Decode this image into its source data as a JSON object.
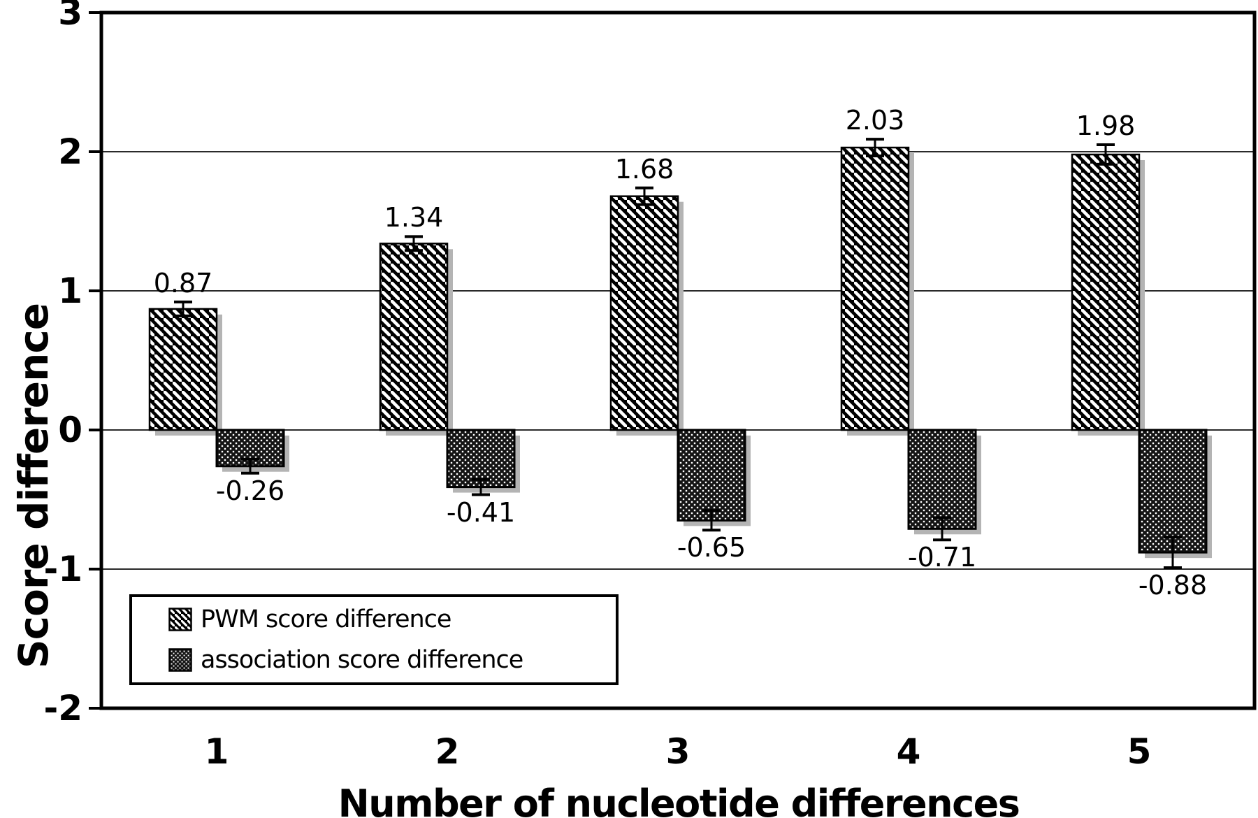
{
  "chart_data": {
    "type": "bar",
    "title": "",
    "xlabel": "Number of nucleotide differences",
    "ylabel": "Score difference",
    "categories": [
      "1",
      "2",
      "3",
      "4",
      "5"
    ],
    "ylim": [
      -2,
      3
    ],
    "yticks": [
      3,
      2,
      1,
      0,
      -1,
      -2
    ],
    "ytick_labels": [
      "3",
      "2",
      "1",
      "0",
      "-1",
      "-2"
    ],
    "grid": "horizontal",
    "legend_position": "inside-bottom-left",
    "series": [
      {
        "name": "PWM score difference",
        "pattern": "diagonal-hatch",
        "values": [
          0.87,
          1.34,
          1.68,
          2.03,
          1.98
        ],
        "labels": [
          "0.87",
          "1.34",
          "1.68",
          "2.03",
          "1.98"
        ],
        "errors_est": [
          0.05,
          0.05,
          0.06,
          0.06,
          0.07
        ]
      },
      {
        "name": "association score difference",
        "pattern": "dotted",
        "values": [
          -0.26,
          -0.41,
          -0.65,
          -0.71,
          -0.88
        ],
        "labels": [
          "-0.26",
          "-0.41",
          "-0.65",
          "-0.71",
          "-0.88"
        ],
        "errors_est": [
          0.05,
          0.055,
          0.07,
          0.08,
          0.11
        ]
      }
    ],
    "colors": {
      "bar_foreground": "#000000",
      "bar_background": "#ffffff",
      "shadow": "#b4b4b4",
      "grid": "#2a2a2a",
      "axis": "#000000"
    }
  }
}
